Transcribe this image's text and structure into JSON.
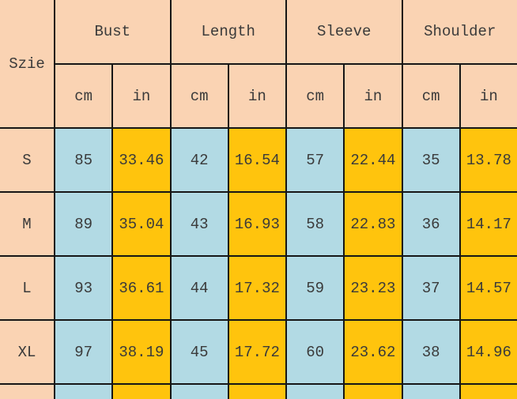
{
  "colors": {
    "header_bg": "#FAD3B3",
    "cm_column_bg": "#B2DAE4",
    "in_column_bg": "#FFC40D",
    "grid_line": "#161616",
    "text": "#3A3A3A"
  },
  "chart_data": {
    "type": "table",
    "corner_label": "Szie",
    "column_groups": [
      {
        "label": "Bust"
      },
      {
        "label": "Length"
      },
      {
        "label": "Sleeve"
      },
      {
        "label": "Shoulder"
      }
    ],
    "unit_headers": [
      "cm",
      "in",
      "cm",
      "in",
      "cm",
      "in",
      "cm",
      "in"
    ],
    "rows": [
      {
        "size": "S",
        "values": [
          "85",
          "33.46",
          "42",
          "16.54",
          "57",
          "22.44",
          "35",
          "13.78"
        ]
      },
      {
        "size": "M",
        "values": [
          "89",
          "35.04",
          "43",
          "16.93",
          "58",
          "22.83",
          "36",
          "14.17"
        ]
      },
      {
        "size": "L",
        "values": [
          "93",
          "36.61",
          "44",
          "17.32",
          "59",
          "23.23",
          "37",
          "14.57"
        ]
      },
      {
        "size": "XL",
        "values": [
          "97",
          "38.19",
          "45",
          "17.72",
          "60",
          "23.62",
          "38",
          "14.96"
        ]
      }
    ]
  }
}
